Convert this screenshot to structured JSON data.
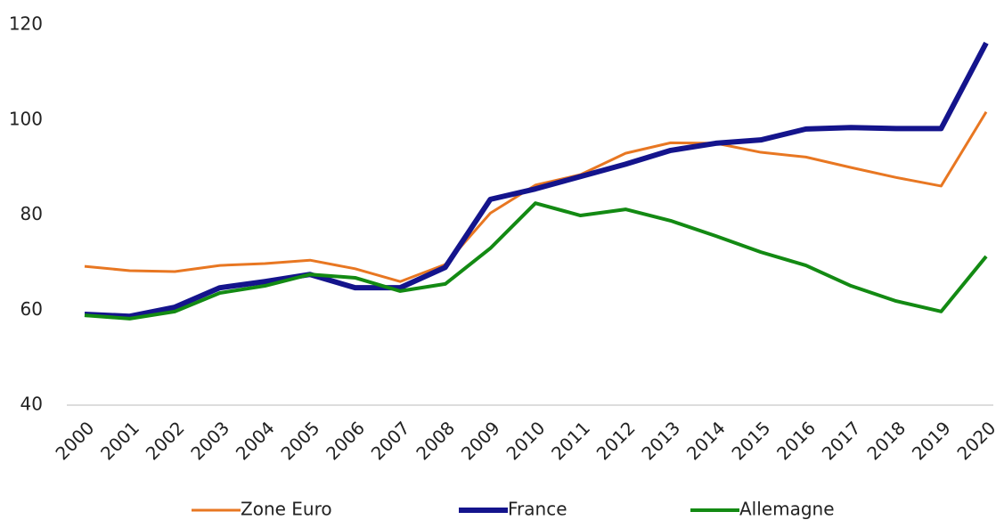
{
  "chart_data": {
    "type": "line",
    "categories": [
      "2000",
      "2001",
      "2002",
      "2003",
      "2004",
      "2005",
      "2006",
      "2007",
      "2008",
      "2009",
      "2010",
      "2011",
      "2012",
      "2013",
      "2014",
      "2015",
      "2016",
      "2017",
      "2018",
      "2019",
      "2020"
    ],
    "series": [
      {
        "name": "Zone Euro",
        "color": "#e87722",
        "values": [
          69.2,
          68.3,
          68.1,
          69.4,
          69.8,
          70.5,
          68.7,
          66.0,
          69.6,
          80.4,
          86.3,
          88.5,
          93.0,
          95.2,
          95.1,
          93.2,
          92.2,
          90.0,
          87.9,
          86.1,
          101.7
        ]
      },
      {
        "name": "France",
        "color": "#14148c",
        "values": [
          59.1,
          58.7,
          60.6,
          64.7,
          66.0,
          67.5,
          64.7,
          64.7,
          69.0,
          83.3,
          85.5,
          88.1,
          90.7,
          93.6,
          95.1,
          95.8,
          98.1,
          98.4,
          98.2,
          98.2,
          116.2
        ]
      },
      {
        "name": "Allemagne",
        "color": "#138a13",
        "values": [
          58.9,
          58.2,
          59.7,
          63.6,
          65.1,
          67.5,
          66.8,
          64.0,
          65.5,
          73.0,
          82.5,
          79.9,
          81.2,
          78.8,
          75.6,
          72.2,
          69.4,
          65.1,
          61.9,
          59.7,
          71.3
        ]
      }
    ],
    "ylim": [
      40,
      120
    ],
    "yticks": [
      40,
      60,
      80,
      100,
      120
    ],
    "grid": false,
    "legend": "bottom"
  }
}
